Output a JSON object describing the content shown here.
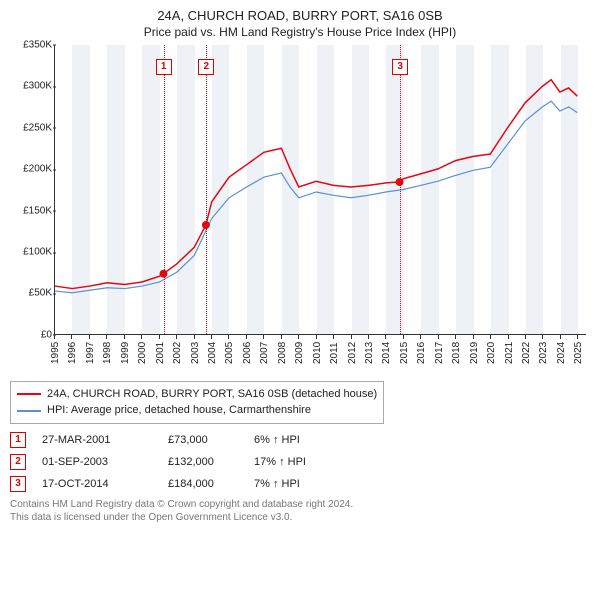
{
  "title": "24A, CHURCH ROAD, BURRY PORT, SA16 0SB",
  "subtitle": "Price paid vs. HM Land Registry's House Price Index (HPI)",
  "chart": {
    "type": "line",
    "background_color": "#ffffff",
    "band_color": "#eef2f7",
    "title_fontsize": 13,
    "label_fontsize": 10,
    "x_years": [
      1995,
      1996,
      1997,
      1998,
      1999,
      2000,
      2001,
      2002,
      2003,
      2004,
      2005,
      2006,
      2007,
      2008,
      2009,
      2010,
      2011,
      2012,
      2013,
      2014,
      2015,
      2016,
      2017,
      2018,
      2019,
      2020,
      2021,
      2022,
      2023,
      2024,
      2025
    ],
    "xlim": [
      1995,
      2025.5
    ],
    "ylim": [
      0,
      350000
    ],
    "ytick_step": 50000,
    "yticks": [
      "£0",
      "£50K",
      "£100K",
      "£150K",
      "£200K",
      "£250K",
      "£300K",
      "£350K"
    ],
    "series": [
      {
        "name": "subject",
        "label": "24A, CHURCH ROAD, BURRY PORT, SA16 0SB (detached house)",
        "color": "#e30613",
        "line_width": 1.5,
        "data": [
          [
            1995,
            58000
          ],
          [
            1996,
            55000
          ],
          [
            1997,
            58000
          ],
          [
            1998,
            62000
          ],
          [
            1999,
            60000
          ],
          [
            2000,
            63000
          ],
          [
            2001,
            70000
          ],
          [
            2001.23,
            73000
          ],
          [
            2002,
            85000
          ],
          [
            2003,
            105000
          ],
          [
            2003.67,
            132000
          ],
          [
            2004,
            160000
          ],
          [
            2005,
            190000
          ],
          [
            2006,
            205000
          ],
          [
            2007,
            220000
          ],
          [
            2008,
            225000
          ],
          [
            2008.5,
            200000
          ],
          [
            2009,
            178000
          ],
          [
            2010,
            185000
          ],
          [
            2011,
            180000
          ],
          [
            2012,
            178000
          ],
          [
            2013,
            180000
          ],
          [
            2014,
            183000
          ],
          [
            2014.79,
            184000
          ],
          [
            2015,
            188000
          ],
          [
            2016,
            194000
          ],
          [
            2017,
            200000
          ],
          [
            2018,
            210000
          ],
          [
            2019,
            215000
          ],
          [
            2020,
            218000
          ],
          [
            2021,
            250000
          ],
          [
            2022,
            280000
          ],
          [
            2023,
            300000
          ],
          [
            2023.5,
            308000
          ],
          [
            2024,
            293000
          ],
          [
            2024.5,
            298000
          ],
          [
            2025,
            288000
          ]
        ]
      },
      {
        "name": "hpi",
        "label": "HPI: Average price, detached house, Carmarthenshire",
        "color": "#5a8fd6",
        "line_width": 1.2,
        "data": [
          [
            1995,
            52000
          ],
          [
            1996,
            50000
          ],
          [
            1997,
            53000
          ],
          [
            1998,
            56000
          ],
          [
            1999,
            55000
          ],
          [
            2000,
            58000
          ],
          [
            2001,
            63000
          ],
          [
            2002,
            75000
          ],
          [
            2003,
            95000
          ],
          [
            2004,
            140000
          ],
          [
            2005,
            165000
          ],
          [
            2006,
            178000
          ],
          [
            2007,
            190000
          ],
          [
            2008,
            195000
          ],
          [
            2008.5,
            178000
          ],
          [
            2009,
            165000
          ],
          [
            2010,
            172000
          ],
          [
            2011,
            168000
          ],
          [
            2012,
            165000
          ],
          [
            2013,
            168000
          ],
          [
            2014,
            172000
          ],
          [
            2015,
            175000
          ],
          [
            2016,
            180000
          ],
          [
            2017,
            185000
          ],
          [
            2018,
            192000
          ],
          [
            2019,
            198000
          ],
          [
            2020,
            202000
          ],
          [
            2021,
            230000
          ],
          [
            2022,
            258000
          ],
          [
            2023,
            275000
          ],
          [
            2023.5,
            282000
          ],
          [
            2024,
            270000
          ],
          [
            2024.5,
            275000
          ],
          [
            2025,
            268000
          ]
        ]
      }
    ],
    "event_markers": [
      {
        "n": "1",
        "year": 2001.23,
        "price": 73000,
        "marker_color": "#d00"
      },
      {
        "n": "2",
        "year": 2003.67,
        "price": 132000,
        "marker_color": "#d00"
      },
      {
        "n": "3",
        "year": 2014.79,
        "price": 184000,
        "marker_color": "#d00"
      }
    ],
    "point_marker": {
      "fill": "#e30613",
      "radius": 4
    }
  },
  "legend": {
    "border_color": "#aaa"
  },
  "events": [
    {
      "n": "1",
      "date": "27-MAR-2001",
      "price": "£73,000",
      "pct": "6% ↑ HPI"
    },
    {
      "n": "2",
      "date": "01-SEP-2003",
      "price": "£132,000",
      "pct": "17% ↑ HPI"
    },
    {
      "n": "3",
      "date": "17-OCT-2014",
      "price": "£184,000",
      "pct": "7% ↑ HPI"
    }
  ],
  "footer": {
    "line1": "Contains HM Land Registry data © Crown copyright and database right 2024.",
    "line2": "This data is licensed under the Open Government Licence v3.0."
  }
}
